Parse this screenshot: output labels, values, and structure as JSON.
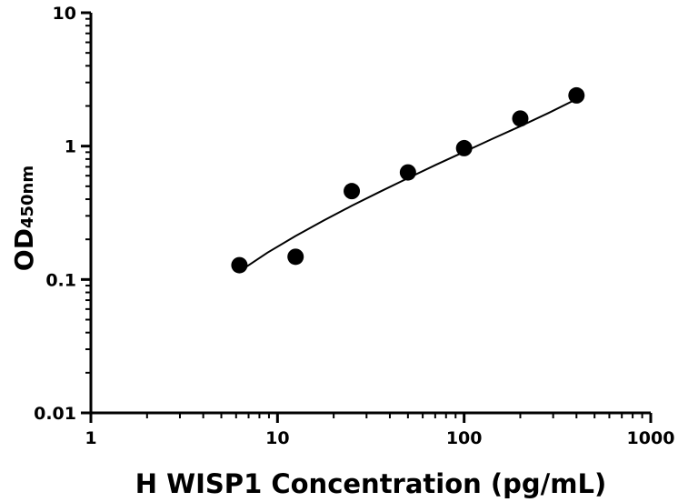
{
  "chart_data": {
    "type": "scatter",
    "xlabel": "H WISP1 Concentration (pg/mL)",
    "ylabel_main": "OD",
    "ylabel_sub": "450nm",
    "x_scale": "log",
    "y_scale": "log",
    "xlim": [
      1,
      1000
    ],
    "ylim": [
      0.01,
      10
    ],
    "x_ticks": [
      {
        "value": 1,
        "label": "1"
      },
      {
        "value": 10,
        "label": "10"
      },
      {
        "value": 100,
        "label": "100"
      },
      {
        "value": 1000,
        "label": "1000"
      }
    ],
    "y_ticks": [
      {
        "value": 0.01,
        "label": "0.01"
      },
      {
        "value": 0.1,
        "label": "0.1"
      },
      {
        "value": 1,
        "label": "1"
      },
      {
        "value": 10,
        "label": "10"
      }
    ],
    "grid": false,
    "legend": "none",
    "points": [
      {
        "x": 6.25,
        "y": 0.128
      },
      {
        "x": 12.5,
        "y": 0.148
      },
      {
        "x": 25,
        "y": 0.46
      },
      {
        "x": 50,
        "y": 0.635
      },
      {
        "x": 100,
        "y": 0.965
      },
      {
        "x": 200,
        "y": 1.61
      },
      {
        "x": 400,
        "y": 2.4
      }
    ],
    "fit_curve": [
      {
        "x": 6.25,
        "y": 0.115
      },
      {
        "x": 8.84,
        "y": 0.159
      },
      {
        "x": 12.5,
        "y": 0.212
      },
      {
        "x": 17.7,
        "y": 0.277
      },
      {
        "x": 25,
        "y": 0.357
      },
      {
        "x": 35.4,
        "y": 0.455
      },
      {
        "x": 50,
        "y": 0.575
      },
      {
        "x": 70.7,
        "y": 0.725
      },
      {
        "x": 100,
        "y": 0.905
      },
      {
        "x": 141,
        "y": 1.13
      },
      {
        "x": 200,
        "y": 1.41
      },
      {
        "x": 283,
        "y": 1.77
      },
      {
        "x": 400,
        "y": 2.25
      }
    ],
    "colors": {
      "marker": "#000000",
      "line": "#000000",
      "axis": "#000000"
    }
  }
}
